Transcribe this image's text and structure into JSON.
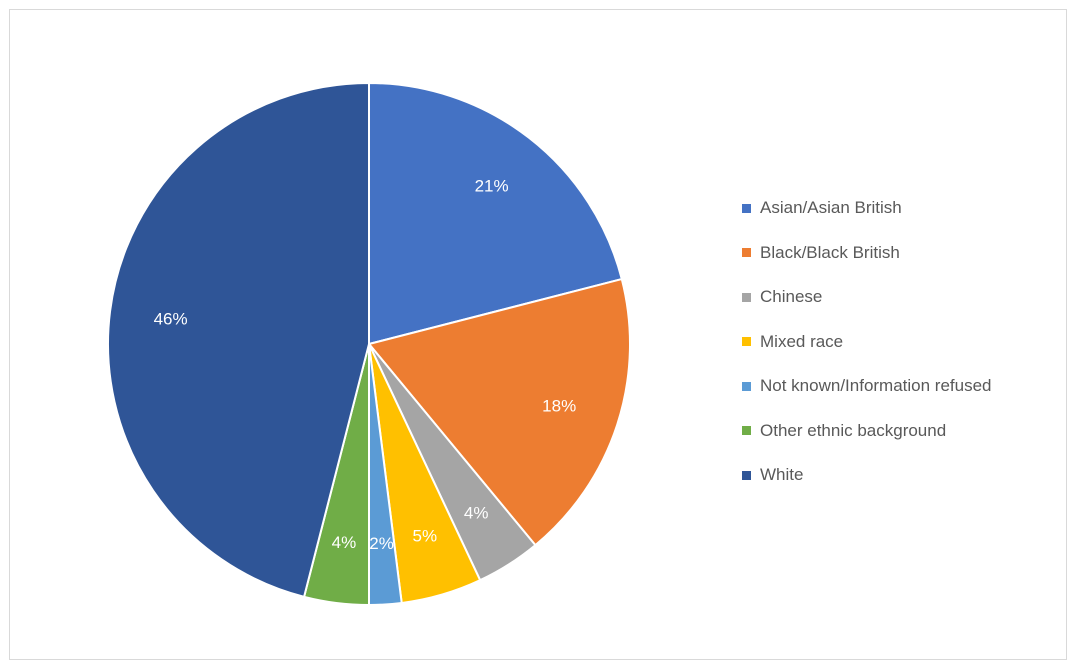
{
  "chart_data": {
    "type": "pie",
    "title": "",
    "legend_position": "right",
    "start_angle_deg": 0,
    "direction": "clockwise",
    "slices": [
      {
        "label": "Asian/Asian British",
        "value": 21,
        "display": "21%",
        "color": "#4472C4"
      },
      {
        "label": "Black/Black British",
        "value": 18,
        "display": "18%",
        "color": "#ED7D31"
      },
      {
        "label": "Chinese",
        "value": 4,
        "display": "4%",
        "color": "#A5A5A5"
      },
      {
        "label": "Mixed race",
        "value": 5,
        "display": "5%",
        "color": "#FFC000"
      },
      {
        "label": "Not known/Information refused",
        "value": 2,
        "display": "2%",
        "color": "#5B9BD5"
      },
      {
        "label": "Other ethnic background",
        "value": 4,
        "display": "4%",
        "color": "#70AD47"
      },
      {
        "label": "White",
        "value": 46,
        "display": "46%",
        "color": "#2F5597"
      }
    ]
  }
}
